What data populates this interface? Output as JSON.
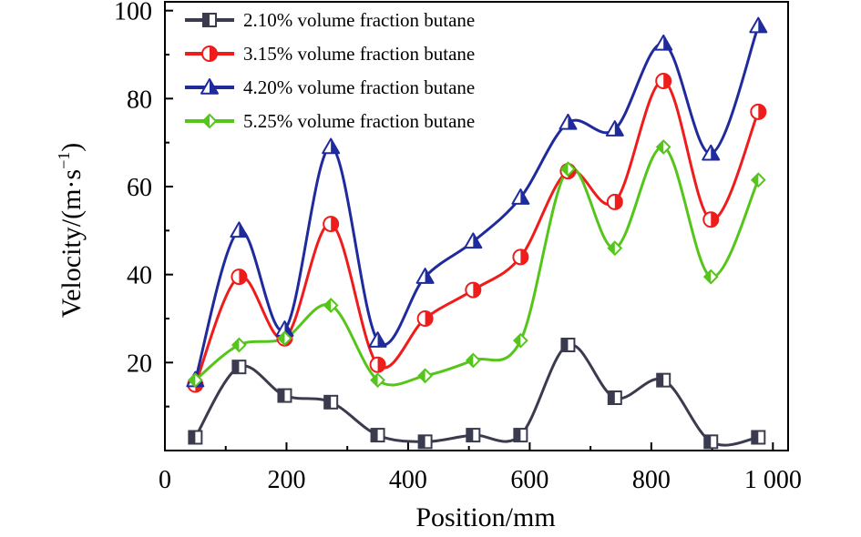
{
  "chart_data": {
    "type": "line",
    "xlabel": "Position/mm",
    "ylabel": "Velocity/(m·s",
    "ylabel_sup": "−1",
    "ylabel_close": ")",
    "xlim": [
      0,
      1025
    ],
    "ylim": [
      0,
      102
    ],
    "x_ticks": [
      0,
      200,
      400,
      600,
      800,
      1000
    ],
    "x_tick_labels": [
      "0",
      "200",
      "400",
      "600",
      "800",
      "1 000"
    ],
    "y_ticks": [
      20,
      40,
      60,
      80,
      100
    ],
    "y_tick_labels": [
      "20",
      "40",
      "60",
      "80",
      "100"
    ],
    "grid": false,
    "legend_position": "top-left",
    "x": [
      50,
      122,
      197,
      273,
      350,
      428,
      507,
      585,
      663,
      740,
      820,
      898,
      976
    ],
    "series": [
      {
        "name": "2.10% volume fraction butane",
        "color": "#3b3b4f",
        "marker": "square",
        "values": [
          3,
          19,
          12.5,
          11,
          3.5,
          2,
          3.5,
          3.5,
          24,
          12,
          16,
          2,
          3
        ]
      },
      {
        "name": "3.15% volume fraction butane",
        "color": "#ef1c1c",
        "marker": "circle",
        "values": [
          15,
          39.5,
          25.5,
          51.5,
          19.5,
          30,
          36.5,
          44,
          63.5,
          56.5,
          84,
          52.5,
          77
        ]
      },
      {
        "name": "4.20% volume fraction butane",
        "color": "#1f2a9c",
        "marker": "triangle",
        "values": [
          16,
          50,
          27.5,
          69,
          25,
          39.5,
          47.5,
          57.5,
          74.5,
          73,
          92.5,
          67.5,
          96.5
        ]
      },
      {
        "name": "5.25% volume fraction butane",
        "color": "#55c51a",
        "marker": "diamond",
        "values": [
          16,
          24,
          25.5,
          33,
          16,
          17,
          20.5,
          25,
          64,
          46,
          69,
          39.5,
          61.5
        ]
      }
    ]
  }
}
